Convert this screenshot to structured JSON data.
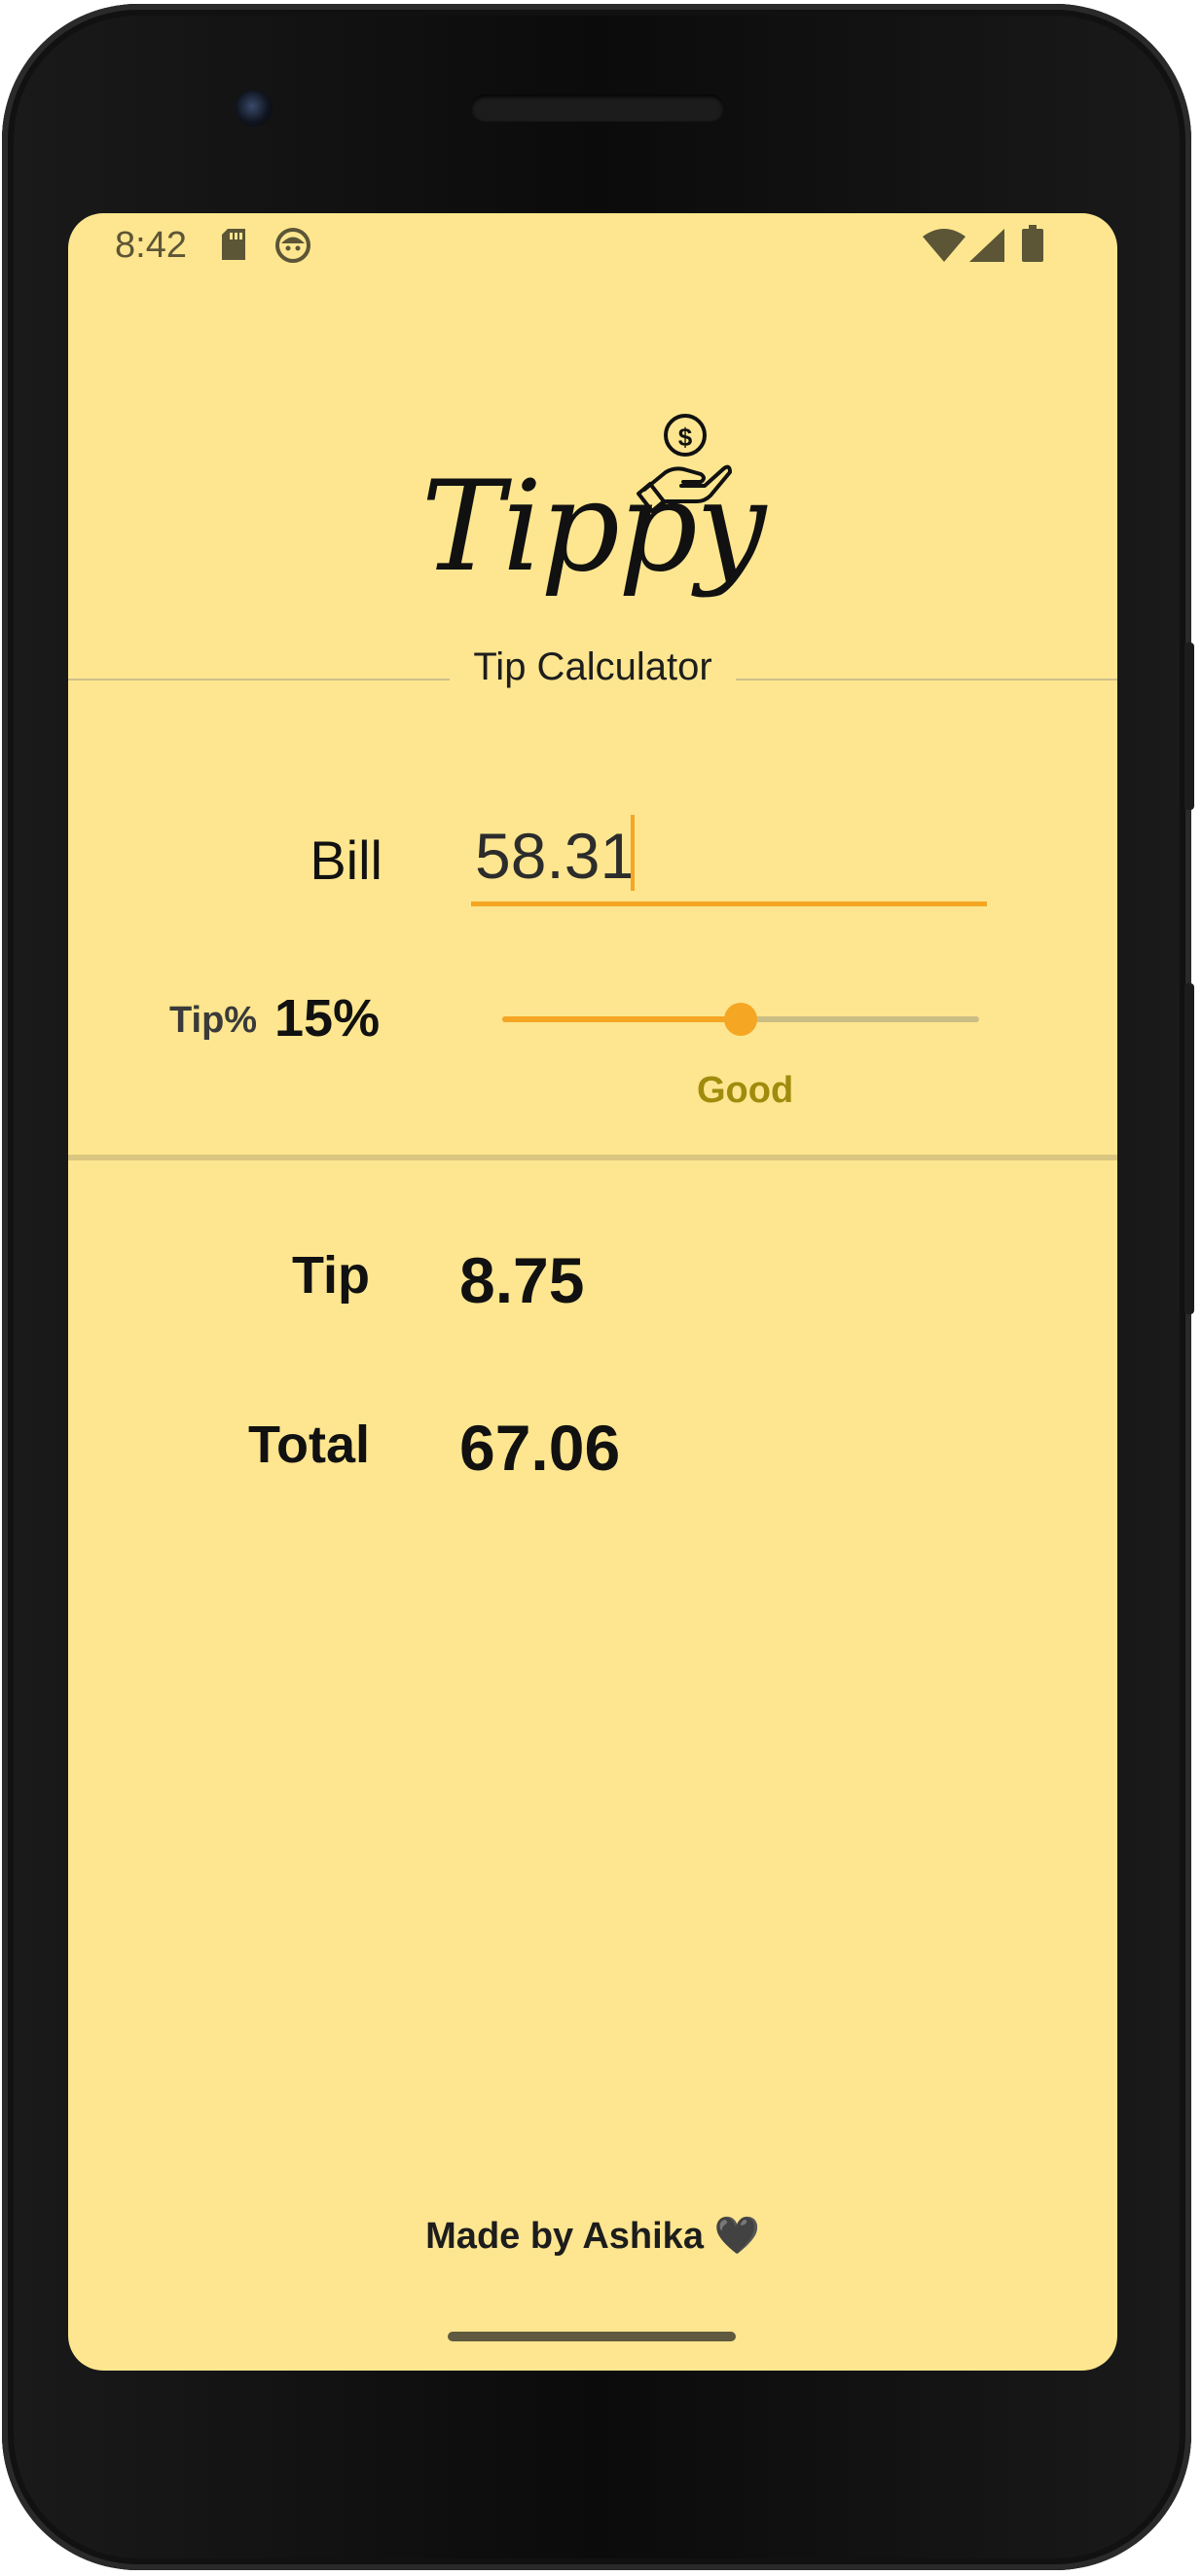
{
  "status_bar": {
    "time": "8:42",
    "left_icons": [
      "sd-card-icon",
      "app-notification-icon"
    ],
    "right_icons": [
      "wifi-icon",
      "cell-signal-icon",
      "battery-icon"
    ]
  },
  "header": {
    "logo_text": "Tippy",
    "subtitle": "Tip Calculator",
    "logo_icon": "hand-coin-icon"
  },
  "bill": {
    "label": "Bill",
    "value": "58.31"
  },
  "tip": {
    "label": "Tip%",
    "percent_text": "15%",
    "slider_fraction": 0.5,
    "description": "Good"
  },
  "results": {
    "tip_label": "Tip",
    "tip_value": "8.75",
    "total_label": "Total",
    "total_value": "67.06"
  },
  "footer": {
    "text": "Made by Ashika 🖤"
  },
  "colors": {
    "background": "#fde68f",
    "accent": "#f5a623",
    "description": "#a08b0c",
    "track": "#cbbd86"
  }
}
